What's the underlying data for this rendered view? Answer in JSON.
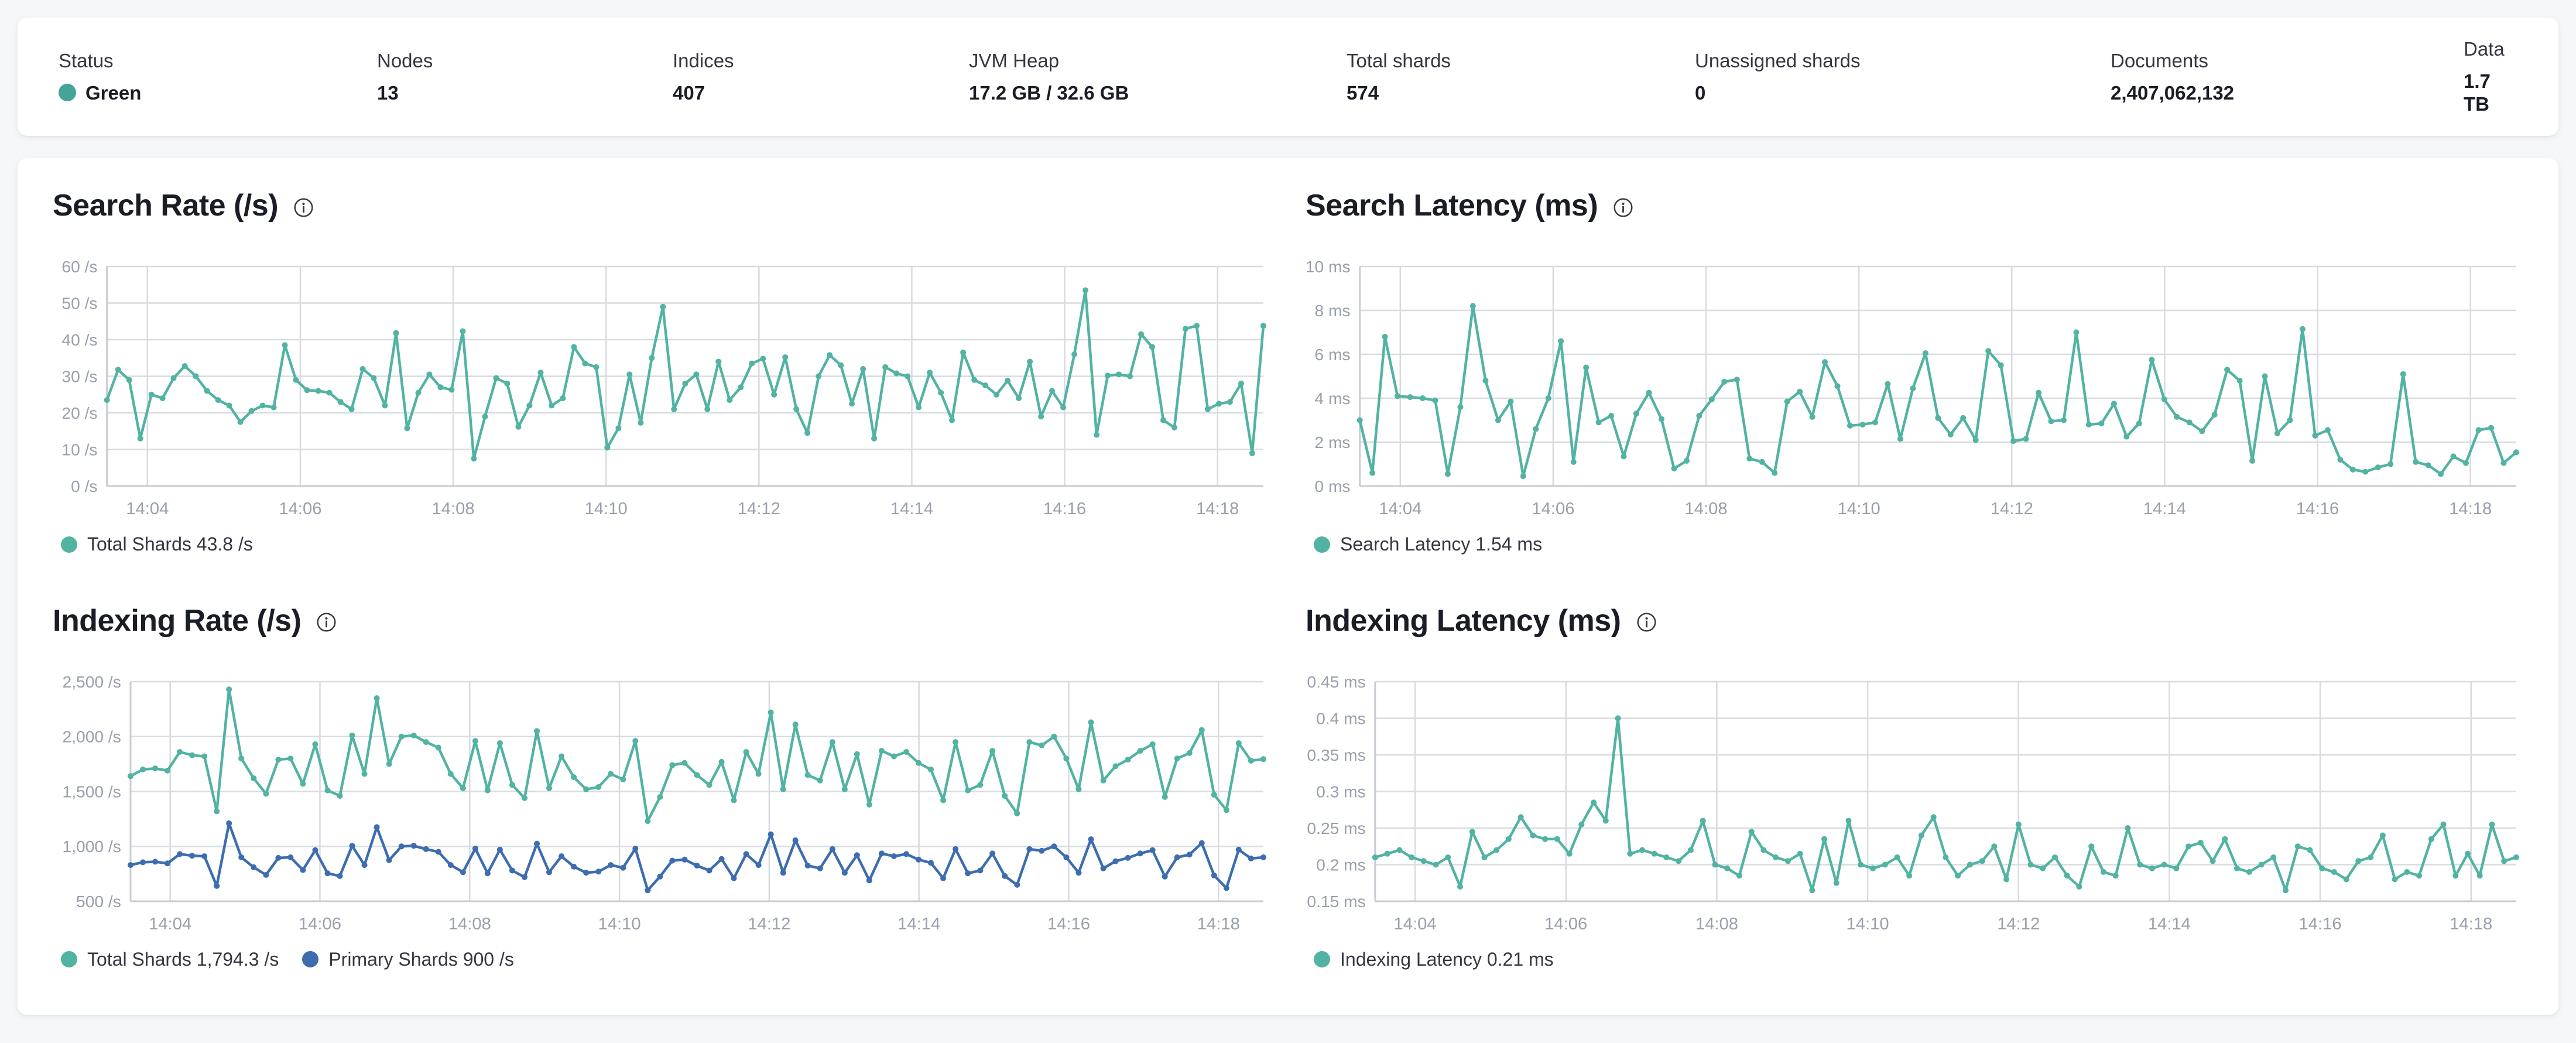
{
  "colors": {
    "status_green": "#45a398",
    "teal": "#52b3a2",
    "blue": "#3d6daf",
    "grid": "#d8dbe0",
    "axis": "#c8ccd2",
    "tick_text": "#98a0ab"
  },
  "overview": {
    "stats": [
      {
        "label": "Status",
        "value": "Green",
        "has_dot": true,
        "dot_color": "#45a398"
      },
      {
        "label": "Nodes",
        "value": "13"
      },
      {
        "label": "Indices",
        "value": "407"
      },
      {
        "label": "JVM Heap",
        "value": "17.2 GB / 32.6 GB"
      },
      {
        "label": "Total shards",
        "value": "574"
      },
      {
        "label": "Unassigned shards",
        "value": "0"
      },
      {
        "label": "Documents",
        "value": "2,407,062,132"
      },
      {
        "label": "Data",
        "value": "1.7 TB"
      }
    ]
  },
  "chart_data": [
    {
      "type": "line",
      "title": "Search Rate (/s)",
      "ylabel": "/s",
      "ylim": [
        0,
        60
      ],
      "grid": true,
      "legend_position": "bottom",
      "x_ticks": [
        "14:04",
        "14:06",
        "14:08",
        "14:10",
        "14:12",
        "14:14",
        "14:16",
        "14:18"
      ],
      "y_ticks": [
        {
          "v": 60,
          "label": "60 /s"
        },
        {
          "v": 50,
          "label": "50 /s"
        },
        {
          "v": 40,
          "label": "40 /s"
        },
        {
          "v": 30,
          "label": "30 /s"
        },
        {
          "v": 20,
          "label": "20 /s"
        },
        {
          "v": 10,
          "label": "10 /s"
        },
        {
          "v": 0,
          "label": "0 /s"
        }
      ],
      "series": [
        {
          "name": "Total Shards",
          "legend": "Total Shards 43.8 /s",
          "current": "43.8 /s",
          "color": "#52b3a2",
          "values": [
            23.5,
            31.8,
            29,
            13,
            25,
            24,
            29.5,
            32.8,
            30,
            26,
            23.5,
            22,
            17.5,
            20.5,
            22,
            21.5,
            38.5,
            29,
            26.2,
            26,
            25.5,
            23,
            21,
            32,
            29.5,
            22,
            41.8,
            15.8,
            25.5,
            30.5,
            27,
            26.3,
            42.3,
            7.5,
            19,
            29.5,
            28,
            16.2,
            22,
            31,
            22,
            24,
            38,
            33.5,
            32.5,
            10.5,
            15.8,
            30.5,
            17.3,
            35,
            49,
            21,
            28,
            30.5,
            21,
            34,
            23.5,
            27,
            33.5,
            34.8,
            25,
            35.2,
            21,
            14.5,
            30,
            35.8,
            33,
            22.5,
            32,
            13,
            32.5,
            30.8,
            30,
            21.5,
            31,
            25.5,
            18,
            36.5,
            29,
            27.5,
            25,
            28.8,
            24,
            34,
            19,
            26,
            21.5,
            36,
            53.5,
            14,
            30.2,
            30.5,
            30,
            41.5,
            38,
            18,
            16,
            43,
            43.8,
            21,
            22.5,
            23,
            28,
            9,
            43.8
          ]
        }
      ]
    },
    {
      "type": "line",
      "title": "Search Latency (ms)",
      "ylabel": "ms",
      "ylim": [
        0,
        10
      ],
      "grid": true,
      "legend_position": "bottom",
      "x_ticks": [
        "14:04",
        "14:06",
        "14:08",
        "14:10",
        "14:12",
        "14:14",
        "14:16",
        "14:18"
      ],
      "y_ticks": [
        {
          "v": 10,
          "label": "10 ms"
        },
        {
          "v": 8,
          "label": "8 ms"
        },
        {
          "v": 6,
          "label": "6 ms"
        },
        {
          "v": 4,
          "label": "4 ms"
        },
        {
          "v": 2,
          "label": "2 ms"
        },
        {
          "v": 0,
          "label": "0 ms"
        }
      ],
      "series": [
        {
          "name": "Search Latency",
          "legend": "Search Latency 1.54 ms",
          "current": "1.54 ms",
          "color": "#52b3a2",
          "values": [
            3.0,
            0.6,
            6.8,
            4.1,
            4.05,
            4.0,
            3.9,
            0.55,
            3.6,
            8.2,
            4.8,
            3.0,
            3.85,
            0.45,
            2.6,
            4.0,
            6.6,
            1.1,
            5.4,
            2.9,
            3.2,
            1.35,
            3.3,
            4.25,
            3.05,
            0.8,
            1.15,
            3.2,
            3.95,
            4.75,
            4.85,
            1.25,
            1.1,
            0.6,
            3.85,
            4.3,
            3.15,
            5.65,
            4.55,
            2.75,
            2.8,
            2.9,
            4.65,
            2.15,
            4.45,
            6.05,
            3.1,
            2.35,
            3.1,
            2.1,
            6.15,
            5.5,
            2.05,
            2.15,
            4.25,
            2.95,
            3.0,
            7.0,
            2.8,
            2.85,
            3.75,
            2.25,
            2.85,
            5.75,
            3.95,
            3.15,
            2.9,
            2.5,
            3.25,
            5.3,
            4.8,
            1.15,
            5.0,
            2.4,
            3.0,
            7.15,
            2.3,
            2.55,
            1.2,
            0.75,
            0.65,
            0.85,
            1.0,
            5.1,
            1.1,
            0.95,
            0.55,
            1.35,
            1.05,
            2.55,
            2.65,
            1.05,
            1.54
          ]
        }
      ]
    },
    {
      "type": "line",
      "title": "Indexing Rate (/s)",
      "ylabel": "/s",
      "ylim": [
        500,
        2500
      ],
      "grid": true,
      "legend_position": "bottom",
      "x_ticks": [
        "14:04",
        "14:06",
        "14:08",
        "14:10",
        "14:12",
        "14:14",
        "14:16",
        "14:18"
      ],
      "y_ticks": [
        {
          "v": 2500,
          "label": "2,500 /s"
        },
        {
          "v": 2000,
          "label": "2,000 /s"
        },
        {
          "v": 1500,
          "label": "1,500 /s"
        },
        {
          "v": 1000,
          "label": "1,000 /s"
        },
        {
          "v": 500,
          "label": "500 /s"
        }
      ],
      "series": [
        {
          "name": "Total Shards",
          "legend": "Total Shards 1,794.3 /s",
          "current": "1,794.3 /s",
          "color": "#52b3a2",
          "values": [
            1640,
            1700,
            1710,
            1690,
            1860,
            1830,
            1820,
            1320,
            2430,
            1800,
            1620,
            1480,
            1790,
            1800,
            1570,
            1930,
            1510,
            1460,
            2010,
            1660,
            2350,
            1750,
            2000,
            2010,
            1950,
            1900,
            1660,
            1530,
            1960,
            1510,
            1940,
            1560,
            1440,
            2050,
            1530,
            1820,
            1630,
            1520,
            1540,
            1660,
            1610,
            1960,
            1230,
            1450,
            1740,
            1760,
            1650,
            1560,
            1770,
            1420,
            1860,
            1660,
            2220,
            1520,
            2110,
            1650,
            1600,
            1950,
            1520,
            1840,
            1380,
            1870,
            1820,
            1860,
            1760,
            1700,
            1420,
            1950,
            1510,
            1560,
            1870,
            1460,
            1300,
            1950,
            1920,
            2000,
            1800,
            1520,
            2130,
            1600,
            1730,
            1790,
            1870,
            1930,
            1450,
            1800,
            1850,
            2060,
            1470,
            1330,
            1940,
            1780,
            1794.3
          ]
        },
        {
          "name": "Primary Shards",
          "legend": "Primary Shards 900 /s",
          "current": "900 /s",
          "color": "#3d6daf",
          "values": [
            830,
            855,
            860,
            845,
            930,
            915,
            910,
            640,
            1210,
            900,
            810,
            740,
            895,
            900,
            785,
            965,
            755,
            730,
            1005,
            830,
            1175,
            875,
            1000,
            1005,
            975,
            950,
            830,
            765,
            980,
            755,
            970,
            780,
            720,
            1025,
            765,
            910,
            815,
            760,
            770,
            830,
            805,
            980,
            600,
            725,
            870,
            880,
            825,
            780,
            885,
            710,
            930,
            830,
            1110,
            760,
            1055,
            825,
            800,
            975,
            760,
            920,
            690,
            935,
            910,
            930,
            880,
            850,
            710,
            975,
            755,
            780,
            935,
            730,
            650,
            975,
            960,
            1000,
            900,
            760,
            1065,
            800,
            865,
            895,
            935,
            965,
            725,
            900,
            925,
            1030,
            735,
            620,
            970,
            890,
            900
          ]
        }
      ]
    },
    {
      "type": "line",
      "title": "Indexing Latency (ms)",
      "ylabel": "ms",
      "ylim": [
        0.15,
        0.45
      ],
      "grid": true,
      "legend_position": "bottom",
      "x_ticks": [
        "14:04",
        "14:06",
        "14:08",
        "14:10",
        "14:12",
        "14:14",
        "14:16",
        "14:18"
      ],
      "y_ticks": [
        {
          "v": 0.45,
          "label": "0.45 ms"
        },
        {
          "v": 0.4,
          "label": "0.4 ms"
        },
        {
          "v": 0.35,
          "label": "0.35 ms"
        },
        {
          "v": 0.3,
          "label": "0.3 ms"
        },
        {
          "v": 0.25,
          "label": "0.25 ms"
        },
        {
          "v": 0.2,
          "label": "0.2 ms"
        },
        {
          "v": 0.15,
          "label": "0.15 ms"
        }
      ],
      "series": [
        {
          "name": "Indexing Latency",
          "legend": "Indexing Latency 0.21 ms",
          "current": "0.21 ms",
          "color": "#52b3a2",
          "values": [
            0.21,
            0.215,
            0.22,
            0.21,
            0.205,
            0.2,
            0.21,
            0.17,
            0.245,
            0.21,
            0.22,
            0.235,
            0.265,
            0.24,
            0.235,
            0.235,
            0.215,
            0.255,
            0.285,
            0.26,
            0.4,
            0.215,
            0.22,
            0.215,
            0.21,
            0.205,
            0.22,
            0.26,
            0.2,
            0.195,
            0.185,
            0.245,
            0.22,
            0.21,
            0.205,
            0.215,
            0.165,
            0.235,
            0.175,
            0.26,
            0.2,
            0.195,
            0.2,
            0.21,
            0.185,
            0.24,
            0.265,
            0.21,
            0.185,
            0.2,
            0.205,
            0.225,
            0.18,
            0.255,
            0.2,
            0.195,
            0.21,
            0.185,
            0.17,
            0.225,
            0.19,
            0.185,
            0.25,
            0.2,
            0.195,
            0.2,
            0.195,
            0.225,
            0.23,
            0.205,
            0.235,
            0.195,
            0.19,
            0.2,
            0.21,
            0.165,
            0.225,
            0.22,
            0.195,
            0.19,
            0.18,
            0.205,
            0.21,
            0.24,
            0.18,
            0.19,
            0.185,
            0.235,
            0.255,
            0.185,
            0.215,
            0.185,
            0.255,
            0.205,
            0.21
          ]
        }
      ]
    }
  ]
}
